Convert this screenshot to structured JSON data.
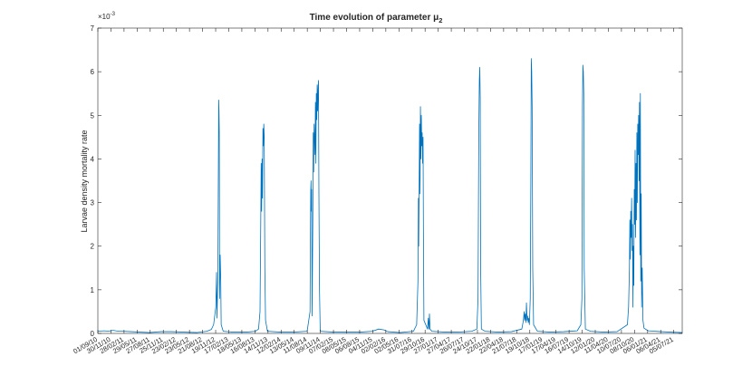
{
  "chart_data": {
    "type": "line",
    "title": "Time evolution of parameter μ",
    "title_subscript": "2",
    "xlabel": "",
    "ylabel": "Larvae density mortality rate",
    "y_exponent": "×10",
    "y_exponent_power": "-3",
    "ylim": [
      0,
      7
    ],
    "yticks": [
      0,
      1,
      2,
      3,
      4,
      5,
      6,
      7
    ],
    "xlim": [
      "2010-09-01",
      "2021-09-01"
    ],
    "xtick_labels": [
      "01/09/10",
      "30/11/10",
      "28/02/11",
      "29/05/11",
      "27/08/11",
      "25/11/11",
      "23/02/12",
      "23/05/12",
      "21/08/12",
      "19/11/12",
      "17/02/13",
      "18/05/13",
      "16/08/13",
      "14/11/13",
      "12/02/14",
      "13/05/14",
      "11/08/14",
      "09/11/14",
      "07/02/15",
      "08/05/15",
      "06/08/15",
      "04/11/15",
      "02/02/16",
      "02/05/16",
      "31/07/16",
      "29/10/16",
      "27/01/17",
      "27/04/17",
      "26/07/17",
      "24/10/17",
      "22/01/18",
      "22/04/18",
      "21/07/18",
      "19/10/18",
      "17/01/19",
      "17/04/19",
      "16/07/19",
      "14/10/19",
      "12/01/20",
      "11/04/20",
      "10/07/20",
      "08/10/20",
      "06/01/21",
      "06/04/21",
      "05/07/21"
    ],
    "grid": false,
    "series": [
      {
        "color": "#0072BD",
        "points": [
          [
            "2010-09-01",
            0.05
          ],
          [
            "2010-10-15",
            0.06
          ],
          [
            "2010-11-10",
            0.05
          ],
          [
            "2010-12-15",
            0.07
          ],
          [
            "2011-01-20",
            0.05
          ],
          [
            "2011-02-25",
            0.05
          ],
          [
            "2011-04-20",
            0.04
          ],
          [
            "2011-06-20",
            0.03
          ],
          [
            "2011-08-20",
            0.02
          ],
          [
            "2011-11-10",
            0.04
          ],
          [
            "2012-01-20",
            0.04
          ],
          [
            "2012-04-15",
            0.03
          ],
          [
            "2012-07-15",
            0.02
          ],
          [
            "2012-09-20",
            0.05
          ],
          [
            "2012-10-20",
            0.09
          ],
          [
            "2012-11-05",
            0.2
          ],
          [
            "2012-11-20",
            0.6
          ],
          [
            "2012-11-25",
            1.4
          ],
          [
            "2012-11-28",
            0.35
          ],
          [
            "2012-12-04",
            1.2
          ],
          [
            "2012-12-08",
            3.9
          ],
          [
            "2012-12-10",
            5.35
          ],
          [
            "2012-12-12",
            5.1
          ],
          [
            "2012-12-14",
            4.6
          ],
          [
            "2012-12-16",
            0.8
          ],
          [
            "2012-12-20",
            1.8
          ],
          [
            "2012-12-24",
            1.2
          ],
          [
            "2012-12-27",
            0.2
          ],
          [
            "2013-01-10",
            0.05
          ],
          [
            "2013-03-15",
            0.03
          ],
          [
            "2013-06-20",
            0.03
          ],
          [
            "2013-08-20",
            0.05
          ],
          [
            "2013-09-10",
            0.1
          ],
          [
            "2013-09-20",
            0.5
          ],
          [
            "2013-09-25",
            2.5
          ],
          [
            "2013-09-28",
            3.9
          ],
          [
            "2013-10-01",
            2.8
          ],
          [
            "2013-10-04",
            4.0
          ],
          [
            "2013-10-07",
            3.1
          ],
          [
            "2013-10-10",
            4.7
          ],
          [
            "2013-10-13",
            4.3
          ],
          [
            "2013-10-16",
            4.8
          ],
          [
            "2013-10-19",
            4.5
          ],
          [
            "2013-10-23",
            1.5
          ],
          [
            "2013-10-28",
            0.3
          ],
          [
            "2013-11-10",
            0.05
          ],
          [
            "2014-02-10",
            0.03
          ],
          [
            "2014-05-10",
            0.03
          ],
          [
            "2014-08-10",
            0.05
          ],
          [
            "2014-08-30",
            0.5
          ],
          [
            "2014-09-02",
            2.5
          ],
          [
            "2014-09-04",
            3.3
          ],
          [
            "2014-09-06",
            3.5
          ],
          [
            "2014-09-08",
            2.8
          ],
          [
            "2014-09-10",
            3.3
          ],
          [
            "2014-09-13",
            0.4
          ],
          [
            "2014-09-18",
            2.6
          ],
          [
            "2014-09-21",
            4.6
          ],
          [
            "2014-09-24",
            3.7
          ],
          [
            "2014-09-27",
            4.8
          ],
          [
            "2014-09-30",
            4.5
          ],
          [
            "2014-10-03",
            4.1
          ],
          [
            "2014-10-06",
            5.3
          ],
          [
            "2014-10-09",
            3.9
          ],
          [
            "2014-10-12",
            5.5
          ],
          [
            "2014-10-15",
            4.9
          ],
          [
            "2014-10-18",
            5.7
          ],
          [
            "2014-10-21",
            5.1
          ],
          [
            "2014-10-24",
            5.6
          ],
          [
            "2014-10-27",
            5.8
          ],
          [
            "2014-10-30",
            3.2
          ],
          [
            "2014-11-03",
            1.0
          ],
          [
            "2014-11-08",
            0.05
          ],
          [
            "2015-02-10",
            0.03
          ],
          [
            "2015-05-10",
            0.03
          ],
          [
            "2015-08-10",
            0.03
          ],
          [
            "2015-11-01",
            0.05
          ],
          [
            "2015-12-15",
            0.1
          ],
          [
            "2016-01-20",
            0.08
          ],
          [
            "2016-02-15",
            0.04
          ],
          [
            "2016-05-10",
            0.02
          ],
          [
            "2016-08-10",
            0.05
          ],
          [
            "2016-09-01",
            0.2
          ],
          [
            "2016-09-10",
            1.2
          ],
          [
            "2016-09-13",
            3.1
          ],
          [
            "2016-09-15",
            2.0
          ],
          [
            "2016-09-18",
            3.3
          ],
          [
            "2016-09-21",
            4.8
          ],
          [
            "2016-09-24",
            3.2
          ],
          [
            "2016-09-27",
            5.2
          ],
          [
            "2016-09-30",
            4.0
          ],
          [
            "2016-10-03",
            5.0
          ],
          [
            "2016-10-06",
            4.3
          ],
          [
            "2016-10-09",
            4.6
          ],
          [
            "2016-10-12",
            3.9
          ],
          [
            "2016-10-15",
            4.5
          ],
          [
            "2016-10-18",
            2.0
          ],
          [
            "2016-10-21",
            0.3
          ],
          [
            "2016-11-15",
            0.1
          ],
          [
            "2016-11-20",
            0.35
          ],
          [
            "2016-11-24",
            0.1
          ],
          [
            "2016-11-28",
            0.45
          ],
          [
            "2016-12-02",
            0.1
          ],
          [
            "2016-12-15",
            0.05
          ],
          [
            "2017-03-15",
            0.03
          ],
          [
            "2017-06-15",
            0.03
          ],
          [
            "2017-09-15",
            0.05
          ],
          [
            "2017-10-20",
            0.1
          ],
          [
            "2017-10-28",
            0.8
          ],
          [
            "2017-11-02",
            4.5
          ],
          [
            "2017-11-06",
            5.8
          ],
          [
            "2017-11-09",
            6.1
          ],
          [
            "2017-11-12",
            5.4
          ],
          [
            "2017-11-15",
            1.5
          ],
          [
            "2017-11-20",
            0.1
          ],
          [
            "2017-12-15",
            0.05
          ],
          [
            "2018-03-15",
            0.03
          ],
          [
            "2018-06-15",
            0.04
          ],
          [
            "2018-08-25",
            0.1
          ],
          [
            "2018-09-05",
            0.3
          ],
          [
            "2018-09-10",
            0.5
          ],
          [
            "2018-09-14",
            0.3
          ],
          [
            "2018-09-18",
            0.45
          ],
          [
            "2018-09-22",
            0.25
          ],
          [
            "2018-09-26",
            0.7
          ],
          [
            "2018-09-30",
            0.3
          ],
          [
            "2018-10-04",
            0.4
          ],
          [
            "2018-10-08",
            0.25
          ],
          [
            "2018-10-12",
            0.35
          ],
          [
            "2018-10-16",
            0.2
          ],
          [
            "2018-10-22",
            0.8
          ],
          [
            "2018-10-26",
            3.5
          ],
          [
            "2018-10-29",
            6.3
          ],
          [
            "2018-11-01",
            6.0
          ],
          [
            "2018-11-04",
            5.2
          ],
          [
            "2018-11-08",
            1.5
          ],
          [
            "2018-11-14",
            0.2
          ],
          [
            "2018-12-10",
            0.05
          ],
          [
            "2019-03-10",
            0.03
          ],
          [
            "2019-06-10",
            0.04
          ],
          [
            "2019-09-10",
            0.06
          ],
          [
            "2019-10-05",
            0.2
          ],
          [
            "2019-10-12",
            0.8
          ],
          [
            "2019-10-16",
            5.2
          ],
          [
            "2019-10-19",
            6.15
          ],
          [
            "2019-10-22",
            6.0
          ],
          [
            "2019-10-25",
            5.5
          ],
          [
            "2019-10-28",
            1.5
          ],
          [
            "2019-11-05",
            0.1
          ],
          [
            "2019-12-10",
            0.05
          ],
          [
            "2020-03-10",
            0.03
          ],
          [
            "2020-06-10",
            0.04
          ],
          [
            "2020-08-20",
            0.2
          ],
          [
            "2020-08-28",
            0.6
          ],
          [
            "2020-09-03",
            1.5
          ],
          [
            "2020-09-06",
            2.6
          ],
          [
            "2020-09-09",
            1.7
          ],
          [
            "2020-09-12",
            2.8
          ],
          [
            "2020-09-15",
            2.2
          ],
          [
            "2020-09-18",
            3.1
          ],
          [
            "2020-09-21",
            1.9
          ],
          [
            "2020-09-24",
            2.5
          ],
          [
            "2020-09-27",
            0.6
          ],
          [
            "2020-09-30",
            2.0
          ],
          [
            "2020-10-03",
            1.1
          ],
          [
            "2020-10-06",
            3.3
          ],
          [
            "2020-10-09",
            2.5
          ],
          [
            "2020-10-12",
            4.2
          ],
          [
            "2020-10-15",
            2.2
          ],
          [
            "2020-10-18",
            3.9
          ],
          [
            "2020-10-21",
            2.6
          ],
          [
            "2020-10-24",
            4.6
          ],
          [
            "2020-10-27",
            3.0
          ],
          [
            "2020-10-30",
            4.8
          ],
          [
            "2020-11-02",
            4.1
          ],
          [
            "2020-11-05",
            5.0
          ],
          [
            "2020-11-08",
            3.5
          ],
          [
            "2020-11-11",
            5.3
          ],
          [
            "2020-11-14",
            1.8
          ],
          [
            "2020-11-17",
            5.5
          ],
          [
            "2020-11-20",
            1.2
          ],
          [
            "2020-11-23",
            3.2
          ],
          [
            "2020-11-26",
            0.6
          ],
          [
            "2020-11-30",
            1.5
          ],
          [
            "2020-12-05",
            0.3
          ],
          [
            "2020-12-12",
            0.12
          ],
          [
            "2021-01-10",
            0.06
          ],
          [
            "2021-04-10",
            0.04
          ],
          [
            "2021-06-10",
            0.03
          ],
          [
            "2021-09-01",
            0.02
          ]
        ]
      }
    ]
  }
}
